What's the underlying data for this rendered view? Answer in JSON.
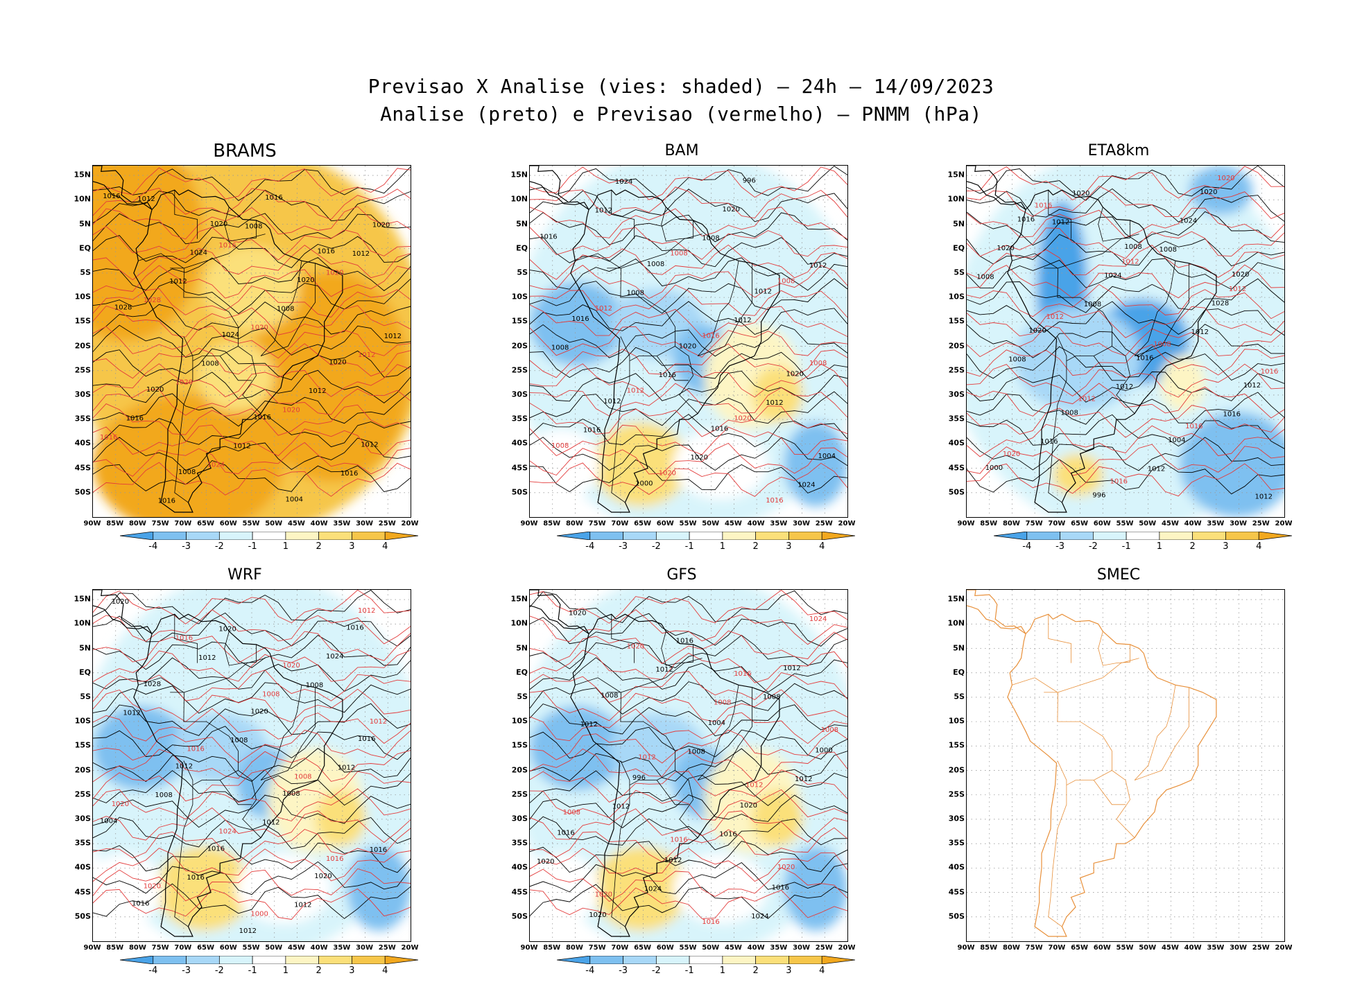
{
  "title_line1": "Previsao X Analise (vies: shaded) – 24h – 14/09/2023",
  "title_line2": "Analise (preto) e Previsao (vermelho) – PNMM (hPa)",
  "colors": {
    "analysis_contour": "#000000",
    "forecast_contour": "#e33b3b",
    "smec_coast": "#e8903a",
    "bias_scale": [
      "#4aa3e8",
      "#7ec0f0",
      "#a8d8f7",
      "#d8f4fb",
      "#ffffff",
      "#fdf5c4",
      "#fbe07a",
      "#f6c64a",
      "#f2a81e"
    ]
  },
  "lat_ticks": [
    "15N",
    "10N",
    "5N",
    "EQ",
    "5S",
    "10S",
    "15S",
    "20S",
    "25S",
    "30S",
    "35S",
    "40S",
    "45S",
    "50S"
  ],
  "lon_ticks": [
    "90W",
    "85W",
    "80W",
    "75W",
    "70W",
    "65W",
    "60W",
    "55W",
    "50W",
    "45W",
    "40W",
    "35W",
    "30W",
    "25W",
    "20W"
  ],
  "colorbar_labels": [
    "-4",
    "-3",
    "-2",
    "-1",
    "1",
    "2",
    "3",
    "4"
  ],
  "panels": [
    {
      "name": "BRAMS",
      "bias_level": "warm",
      "analysis_labels": [
        "1012",
        "1008",
        "1012",
        "1012",
        "1008",
        "1012",
        "1008",
        "1012",
        "1016",
        "1012",
        "1016",
        "1016",
        "1016",
        "1020",
        "1024",
        "1020",
        "1028",
        "1024",
        "1020",
        "1020",
        "1016",
        "1012",
        "1008",
        "1004",
        "1016",
        "1020",
        "1016"
      ],
      "forecast_labels": [
        "1016",
        "1020",
        "1028",
        "1020",
        "1012",
        "1020",
        "1020",
        "1016",
        "1024"
      ]
    },
    {
      "name": "BAM",
      "bias_level": "mixed",
      "analysis_labels": [
        "1012",
        "1008",
        "1012",
        "1008",
        "1012",
        "1008",
        "1016",
        "1012",
        "1016",
        "1020",
        "1024",
        "1024",
        "1020",
        "1016",
        "1008",
        "1012",
        "1016",
        "1020",
        "1020",
        "1012",
        "1016",
        "1004",
        "1000",
        "996"
      ],
      "forecast_labels": [
        "1008",
        "1008",
        "1012",
        "1016",
        "1008",
        "1012",
        "1020",
        "1008",
        "1020",
        "1016"
      ]
    },
    {
      "name": "ETA8km",
      "bias_level": "cold",
      "analysis_labels": [
        "1012",
        "1008",
        "1008",
        "1008",
        "1012",
        "1008",
        "1012",
        "1016",
        "1016",
        "1012",
        "1012",
        "1020",
        "1024",
        "1020",
        "1024",
        "1028",
        "1020",
        "1016",
        "1012",
        "1008",
        "1004",
        "1000",
        "996",
        "1020",
        "1016",
        "1008",
        "1020"
      ],
      "forecast_labels": [
        "1012",
        "1012",
        "1012",
        "1008",
        "1016",
        "1012",
        "1016",
        "1020",
        "1016",
        "1020",
        "1016"
      ]
    },
    {
      "name": "WRF",
      "bias_level": "mixed",
      "analysis_labels": [
        "1012",
        "1008",
        "1012",
        "1008",
        "1012",
        "1008",
        "1012",
        "1016",
        "1016",
        "1012",
        "1020",
        "1020",
        "1024",
        "1028",
        "1020",
        "1016",
        "1012",
        "1008",
        "1004",
        "1016",
        "1020",
        "1016",
        "1012",
        "1016"
      ],
      "forecast_labels": [
        "1008",
        "1012",
        "1016",
        "1008",
        "1020",
        "1024",
        "1016",
        "1020",
        "1000",
        "1012",
        "1016",
        "1020"
      ]
    },
    {
      "name": "GFS",
      "bias_level": "mixed",
      "analysis_labels": [
        "1012",
        "1008",
        "1012",
        "1008",
        "1012",
        "1012",
        "1016",
        "1020",
        "1024",
        "1024",
        "1020",
        "1016",
        "1012",
        "1008",
        "1004",
        "1000",
        "996",
        "1020",
        "1016",
        "1012",
        "1016",
        "1020"
      ],
      "forecast_labels": [
        "1008",
        "1008",
        "1012",
        "1012",
        "1008",
        "1016",
        "1020",
        "1020",
        "1016",
        "1024",
        "1020",
        "1016"
      ]
    },
    {
      "name": "SMEC",
      "bias_level": "none",
      "analysis_labels": [],
      "forecast_labels": []
    }
  ]
}
